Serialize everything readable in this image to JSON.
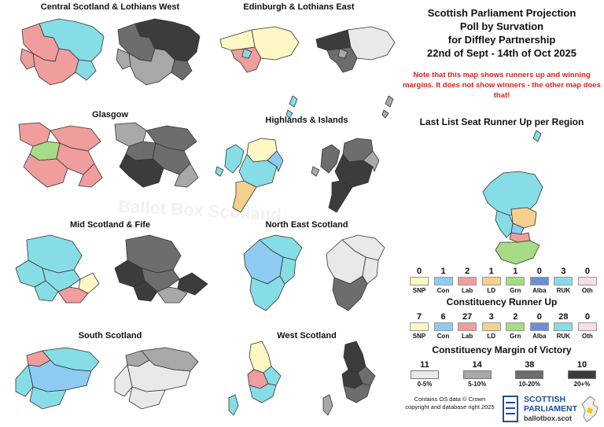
{
  "colors": {
    "snp": "#fdf8c3",
    "con": "#8ecbf2",
    "lab": "#f09d9d",
    "ld": "#f5d08e",
    "grn": "#a7db86",
    "alba": "#6c8fd6",
    "ruk": "#86dde6",
    "oth": "#f7dde6",
    "m1": "#e9e9e9",
    "m2": "#a8a8a8",
    "m3": "#6d6d6d",
    "m4": "#3c3c3c"
  },
  "titles": {
    "central": "Central Scotland & Lothians West",
    "edinburgh": "Edinburgh & Lothians East",
    "glasgow": "Glasgow",
    "highlands": "Highlands & Islands",
    "mid": "Mid Scotland & Fife",
    "northeast": "North East Scotland",
    "south": "South Scotland",
    "west": "West Scotland"
  },
  "header": {
    "line1": "Scottish Parliament Projection",
    "line2": "Poll by Survation",
    "line3": "for Diffley Partnership",
    "line4": "22nd of Sept - 14th of Oct 2025"
  },
  "note": "Note that this map shows runners up and winning margins. It does not show winners - the other map does that!",
  "list_title": "Last List Seat Runner Up per Region",
  "list_legend": [
    {
      "party": "SNP",
      "count": "0"
    },
    {
      "party": "Con",
      "count": "1"
    },
    {
      "party": "Lab",
      "count": "2"
    },
    {
      "party": "LD",
      "count": "1"
    },
    {
      "party": "Grn",
      "count": "1"
    },
    {
      "party": "Alba",
      "count": "0"
    },
    {
      "party": "RUK",
      "count": "3"
    },
    {
      "party": "Oth",
      "count": "0"
    }
  ],
  "const_title": "Constituency Runner Up",
  "const_legend": [
    {
      "party": "SNP",
      "count": "7"
    },
    {
      "party": "Con",
      "count": "6"
    },
    {
      "party": "Lab",
      "count": "27"
    },
    {
      "party": "LD",
      "count": "3"
    },
    {
      "party": "Grn",
      "count": "2"
    },
    {
      "party": "Alba",
      "count": "0"
    },
    {
      "party": "RUK",
      "count": "28"
    },
    {
      "party": "Oth",
      "count": "0"
    }
  ],
  "margin_title": "Constituency Margin of Victory",
  "margin_legend": [
    {
      "band": "0-5%",
      "count": "11"
    },
    {
      "band": "5-10%",
      "count": "14"
    },
    {
      "band": "10-20%",
      "count": "38"
    },
    {
      "band": "20+%",
      "count": "10"
    }
  ],
  "credit": "Contains OS data © Crown copyright and database right 2025",
  "logo": {
    "line1": "SCOTTISH",
    "line2": "PARLIAMENT",
    "line3": "ballotbox.scot"
  },
  "watermark": "Ballot Box Scotland"
}
